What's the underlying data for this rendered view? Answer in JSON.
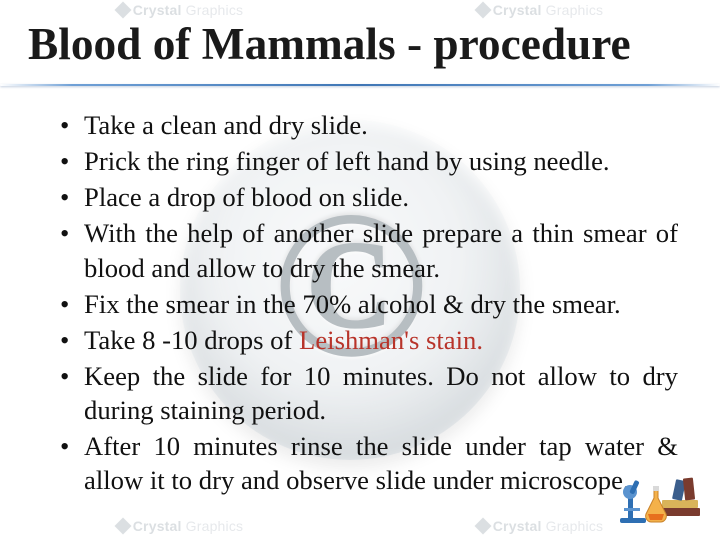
{
  "watermark": {
    "brand_a": "Crystal",
    "brand_b": "Graphics",
    "color": "#9aa4ad"
  },
  "title": {
    "text": "Blood of Mammals - procedure",
    "font_size_pt": 34,
    "font_family": "Times New Roman",
    "color": "#1a1a1a",
    "rule_gradient_mid": "#3f76b5"
  },
  "body": {
    "font_size_pt": 20,
    "line_height": 1.28,
    "font_family": "Times New Roman",
    "text_color": "#111111",
    "bullets": [
      {
        "text": "Take a clean and dry slide."
      },
      {
        "text": "Prick the ring finger of left hand by using needle."
      },
      {
        "text": "Place a drop of blood on slide."
      },
      {
        "text": "With the help of another slide prepare a thin smear of blood and allow to dry the smear."
      },
      {
        "text": "Fix the smear in the 70% alcohol & dry the smear."
      },
      {
        "pre": "Take 8 -10 drops of ",
        "highlight": "Leishman's stain.",
        "highlight_color": "#b8342a"
      },
      {
        "text": "Keep the slide for 10 minutes. Do not allow to dry during staining period."
      },
      {
        "text": "After 10 minutes rinse the slide under tap water & allow it to dry and observe slide under microscope."
      }
    ]
  },
  "copyright_disc": {
    "glyph": "©",
    "disc_color_outer": "#bfc7cd",
    "disc_color_inner": "#f4f6f8",
    "glyph_color": "#7e8992"
  },
  "clipart": {
    "microscope_color": "#2e6fb3",
    "flask_color": "#e76f1e",
    "book_colors": [
      "#7a3b2e",
      "#d9b45a",
      "#3b5e8c"
    ]
  }
}
